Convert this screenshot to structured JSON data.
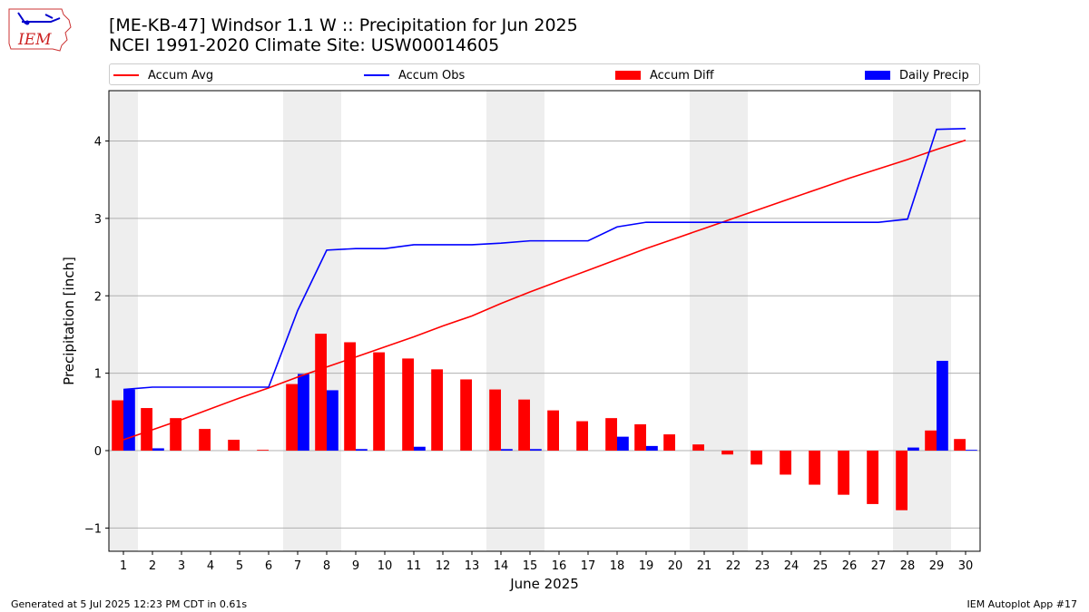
{
  "title_line1": "[ME-KB-47] Windsor 1.1 W :: Precipitation for Jun 2025",
  "title_line2": "NCEI 1991-2020 Climate Site: USW00014605",
  "logo_text": "IEM",
  "footer_left": "Generated at 5 Jul 2025 12:23 PM CDT in 0.61s",
  "footer_right": "IEM Autoplot App #17",
  "legend": [
    {
      "label": "Accum Avg",
      "kind": "line",
      "color": "#ff0000"
    },
    {
      "label": "Accum Obs",
      "kind": "line",
      "color": "#0000ff"
    },
    {
      "label": "Accum Diff",
      "kind": "box",
      "color": "#ff0000"
    },
    {
      "label": "Daily Precip",
      "kind": "box",
      "color": "#0000ff"
    }
  ],
  "chart_data": {
    "type": "bar",
    "xlabel": "June 2025",
    "ylabel": "Precipitation [inch]",
    "ylim": [
      -1.3,
      4.65
    ],
    "yticks": [
      -1,
      0,
      1,
      2,
      3,
      4
    ],
    "ytick_labels": [
      "−1",
      "0",
      "1",
      "2",
      "3",
      "4"
    ],
    "grid": "horizontal",
    "legend_position": "top",
    "x": [
      1,
      2,
      3,
      4,
      5,
      6,
      7,
      8,
      9,
      10,
      11,
      12,
      13,
      14,
      15,
      16,
      17,
      18,
      19,
      20,
      21,
      22,
      23,
      24,
      25,
      26,
      27,
      28,
      29,
      30
    ],
    "weekend_days": [
      1,
      7,
      8,
      14,
      15,
      21,
      22,
      28,
      29
    ],
    "series": [
      {
        "name": "Accum Avg",
        "kind": "line",
        "color": "#ff0000",
        "values": [
          0.14,
          0.27,
          0.4,
          0.54,
          0.68,
          0.81,
          0.95,
          1.08,
          1.21,
          1.34,
          1.47,
          1.61,
          1.74,
          1.9,
          2.05,
          2.19,
          2.33,
          2.47,
          2.61,
          2.74,
          2.87,
          3.0,
          3.13,
          3.26,
          3.39,
          3.52,
          3.64,
          3.76,
          3.89,
          4.01
        ]
      },
      {
        "name": "Accum Obs",
        "kind": "line",
        "color": "#0000ff",
        "values": [
          0.79,
          0.82,
          0.82,
          0.82,
          0.82,
          0.82,
          1.81,
          2.59,
          2.61,
          2.61,
          2.66,
          2.66,
          2.66,
          2.68,
          2.71,
          2.71,
          2.71,
          2.89,
          2.95,
          2.95,
          2.95,
          2.95,
          2.95,
          2.95,
          2.95,
          2.95,
          2.95,
          2.99,
          4.15,
          4.16
        ]
      },
      {
        "name": "Accum Diff",
        "kind": "bar",
        "color": "#ff0000",
        "values": [
          0.65,
          0.55,
          0.42,
          0.28,
          0.14,
          0.01,
          0.86,
          1.51,
          1.4,
          1.27,
          1.19,
          1.05,
          0.92,
          0.79,
          0.66,
          0.52,
          0.38,
          0.42,
          0.34,
          0.21,
          0.08,
          -0.05,
          -0.18,
          -0.31,
          -0.44,
          -0.57,
          -0.69,
          -0.77,
          0.26,
          0.15
        ]
      },
      {
        "name": "Daily Precip",
        "kind": "bar",
        "color": "#0000ff",
        "values": [
          0.79,
          0.03,
          0.0,
          0.0,
          0.0,
          0.0,
          0.99,
          0.78,
          0.02,
          0.0,
          0.05,
          0.0,
          0.0,
          0.02,
          0.02,
          0.0,
          0.0,
          0.18,
          0.06,
          0.0,
          0.0,
          0.0,
          0.0,
          0.0,
          0.0,
          0.0,
          0.0,
          0.04,
          1.16,
          0.01
        ]
      }
    ]
  }
}
